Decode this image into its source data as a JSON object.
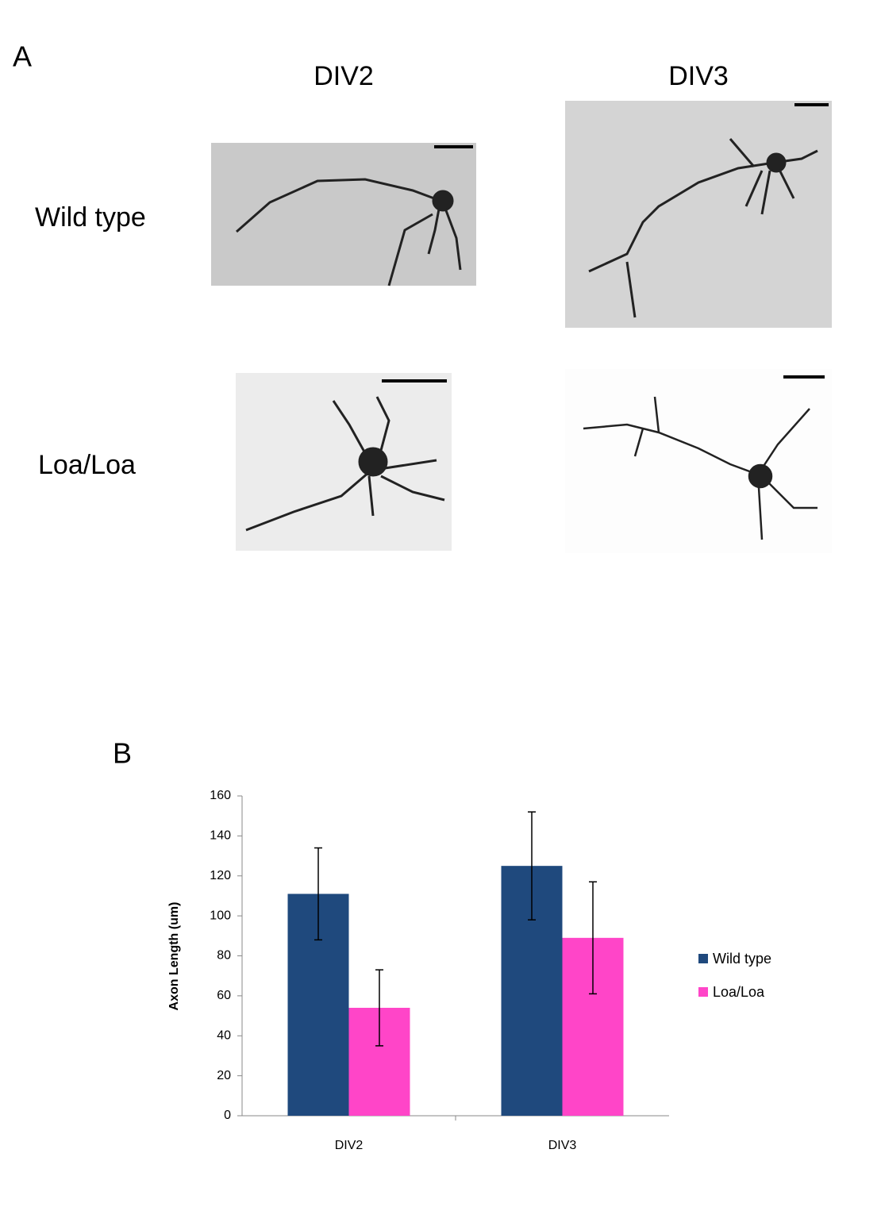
{
  "panel_a": {
    "label": "A",
    "columns": [
      "DIV2",
      "DIV3"
    ],
    "rows": [
      "Wild type",
      "Loa/Loa"
    ]
  },
  "panel_b": {
    "label": "B"
  },
  "chart_data": {
    "type": "bar",
    "ylabel": "Axon Length (um)",
    "categories": [
      "DIV2",
      "DIV3"
    ],
    "series": [
      {
        "name": "Wild type",
        "color": "#1f497d",
        "values": [
          111,
          125
        ],
        "errors": [
          23,
          27
        ]
      },
      {
        "name": "Loa/Loa",
        "color": "#ff45c8",
        "values": [
          54,
          89
        ],
        "errors": [
          19,
          28
        ]
      }
    ],
    "ylim": [
      0,
      160
    ],
    "yticks": [
      0,
      20,
      40,
      60,
      80,
      100,
      120,
      140,
      160
    ],
    "grid": false,
    "legend": "right"
  }
}
